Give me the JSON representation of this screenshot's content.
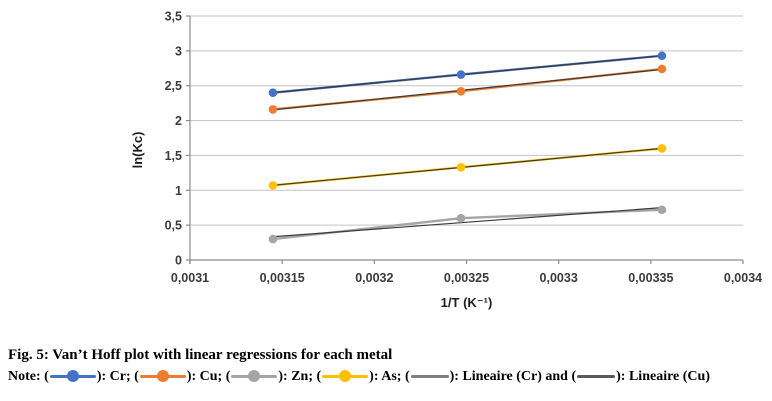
{
  "figure": {
    "caption": "Fig. 5: Van’t Hoff plot with linear regressions for each metal",
    "note_prefix": "Note: ",
    "note_legend": [
      {
        "name": "cr",
        "pre": "(",
        "post": "): Cr; ",
        "color": "#4472C4",
        "marker": true
      },
      {
        "name": "cu",
        "pre": "(",
        "post": "): Cu; ",
        "color": "#ED7D31",
        "marker": true
      },
      {
        "name": "zn",
        "pre": "(",
        "post": "): Zn; ",
        "color": "#A5A5A5",
        "marker": true
      },
      {
        "name": "as",
        "pre": "(",
        "post": "): As; ",
        "color": "#FFC000",
        "marker": true
      },
      {
        "name": "lineaire-cr",
        "pre": "(",
        "post": "): Lineaire (Cr) and ",
        "color": "#7F7F7F",
        "marker": false
      },
      {
        "name": "lineaire-cu",
        "pre": "(",
        "post": "): Lineaire (Cu)",
        "color": "#595959",
        "marker": false
      }
    ]
  },
  "chart_data": {
    "type": "line",
    "title": "",
    "xlabel": "1/T (K⁻¹)",
    "ylabel": "ln(Kc)",
    "xlim": [
      0.0031,
      0.0034
    ],
    "ylim": [
      0,
      3.5
    ],
    "grid": "horizontal",
    "x_tick_labels": [
      "0,0031",
      "0,00315",
      "0,0032",
      "0,00325",
      "0,0033",
      "0,00335",
      "0,0034"
    ],
    "y_tick_labels": [
      "0",
      "0,5",
      "1",
      "1,5",
      "2",
      "2,5",
      "3",
      "3,5"
    ],
    "x": [
      0.003145,
      0.003247,
      0.003356
    ],
    "series": [
      {
        "name": "Cr",
        "color": "#4472C4",
        "values": [
          2.4,
          2.66,
          2.93
        ],
        "trendline": true
      },
      {
        "name": "Cu",
        "color": "#ED7D31",
        "values": [
          2.16,
          2.42,
          2.74
        ],
        "trendline": true
      },
      {
        "name": "Zn",
        "color": "#A5A5A5",
        "values": [
          0.3,
          0.6,
          0.72
        ],
        "trendline": true
      },
      {
        "name": "As",
        "color": "#FFC000",
        "values": [
          1.07,
          1.33,
          1.6
        ],
        "trendline": true
      }
    ],
    "trendline_color": "#3A3A3A",
    "trendline_labels": [
      "Lineaire (Cr)",
      "Lineaire (Cu)"
    ],
    "colors": {
      "gridline": "#C3C3C3",
      "axis": "#8C8C8C",
      "tick_label": "#3B3B3B",
      "axis_title": "#1F1F1F"
    }
  }
}
